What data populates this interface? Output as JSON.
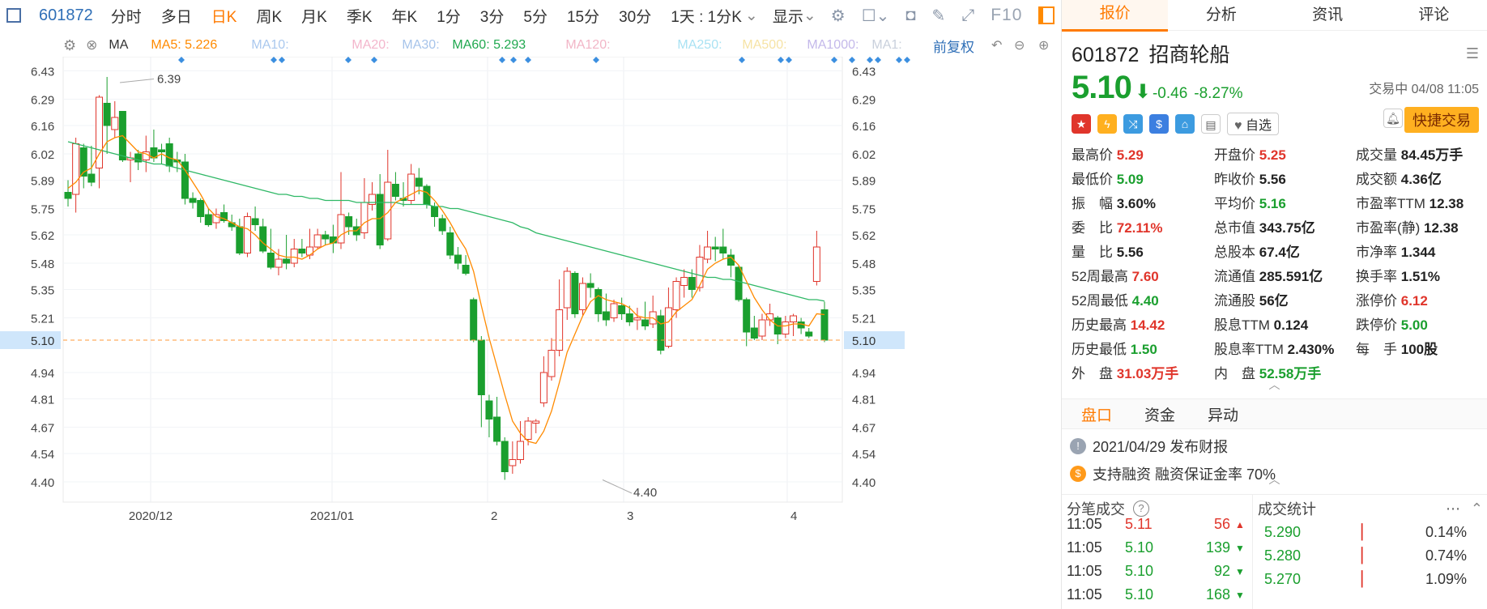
{
  "toolbar": {
    "code": "601872",
    "tabs": [
      "分时",
      "多日",
      "日K",
      "周K",
      "月K",
      "季K",
      "年K",
      "1分",
      "3分",
      "5分",
      "15分",
      "30分"
    ],
    "active_tab": "日K",
    "more": "1天 : 1分K",
    "display": "显示",
    "f10": "F10"
  },
  "ma": {
    "label": "MA",
    "items": [
      {
        "name": "MA5: 5.226",
        "color": "#ff8a00"
      },
      {
        "name": "MA10:",
        "color": "#aac8ee"
      },
      {
        "name": "MA20:",
        "color": "#f3b6cc"
      },
      {
        "name": "MA30:",
        "color": "#a7c4ea"
      },
      {
        "name": "MA60: 5.293",
        "color": "#20a84f"
      },
      {
        "name": "MA120:",
        "color": "#f2b6c7"
      },
      {
        "name": "MA250:",
        "color": "#a9e2f3"
      },
      {
        "name": "MA500:",
        "color": "#f6e3a5"
      },
      {
        "name": "MA1000:",
        "color": "#c4b9ea"
      },
      {
        "name": "MA1:",
        "color": "#c9d0dc"
      }
    ],
    "adjust": "前复权"
  },
  "chart_data": {
    "type": "candlestick",
    "ylim": [
      4.3,
      6.5
    ],
    "yticks": [
      "6.43",
      "6.29",
      "6.16",
      "6.02",
      "5.89",
      "5.75",
      "5.62",
      "5.48",
      "5.35",
      "5.21",
      "5.10",
      "4.94",
      "4.81",
      "4.67",
      "4.54",
      "4.40"
    ],
    "current_price": "5.10",
    "xlabels": [
      "2020/12",
      "2021/01",
      "2",
      "3",
      "4"
    ],
    "high_label": "6.39",
    "low_label": "4.40",
    "candles": [
      [
        5.83,
        5.8,
        5.89,
        5.76
      ],
      [
        5.82,
        6.07,
        6.1,
        5.73
      ],
      [
        6.05,
        5.91,
        6.07,
        5.85
      ],
      [
        5.92,
        5.88,
        6.06,
        5.86
      ],
      [
        5.95,
        6.3,
        6.31,
        5.85
      ],
      [
        6.27,
        6.16,
        6.4,
        6.02
      ],
      [
        6.14,
        6.2,
        6.28,
        6.1
      ],
      [
        6.23,
        5.99,
        6.23,
        5.98
      ],
      [
        5.99,
        6.0,
        6.03,
        5.88
      ],
      [
        6.02,
        5.98,
        6.04,
        5.94
      ],
      [
        5.99,
        6.03,
        6.11,
        5.93
      ],
      [
        6.05,
        6.0,
        6.14,
        5.98
      ],
      [
        6.04,
        6.03,
        6.07,
        5.97
      ],
      [
        6.07,
        5.96,
        6.1,
        5.93
      ],
      [
        5.99,
        5.98,
        6.03,
        5.93
      ],
      [
        5.98,
        5.8,
        6.02,
        5.77
      ],
      [
        5.8,
        5.78,
        5.83,
        5.75
      ],
      [
        5.79,
        5.71,
        5.8,
        5.68
      ],
      [
        5.72,
        5.67,
        5.75,
        5.66
      ],
      [
        5.68,
        5.72,
        5.75,
        5.65
      ],
      [
        5.73,
        5.69,
        5.77,
        5.68
      ],
      [
        5.68,
        5.66,
        5.72,
        5.64
      ],
      [
        5.66,
        5.53,
        5.7,
        5.52
      ],
      [
        5.53,
        5.71,
        5.73,
        5.51
      ],
      [
        5.7,
        5.67,
        5.76,
        5.64
      ],
      [
        5.66,
        5.54,
        5.7,
        5.53
      ],
      [
        5.53,
        5.46,
        5.65,
        5.45
      ],
      [
        5.46,
        5.5,
        5.55,
        5.42
      ],
      [
        5.5,
        5.48,
        5.62,
        5.45
      ],
      [
        5.48,
        5.55,
        5.6,
        5.46
      ],
      [
        5.55,
        5.53,
        5.6,
        5.51
      ],
      [
        5.52,
        5.56,
        5.65,
        5.5
      ],
      [
        5.56,
        5.62,
        5.65,
        5.55
      ],
      [
        5.62,
        5.6,
        5.64,
        5.57
      ],
      [
        5.61,
        5.58,
        5.67,
        5.53
      ],
      [
        5.58,
        5.72,
        5.93,
        5.55
      ],
      [
        5.71,
        5.66,
        5.73,
        5.62
      ],
      [
        5.66,
        5.62,
        5.7,
        5.59
      ],
      [
        5.63,
        5.78,
        5.9,
        5.6
      ],
      [
        5.77,
        5.82,
        5.88,
        5.74
      ],
      [
        5.82,
        5.57,
        5.92,
        5.55
      ],
      [
        5.6,
        5.88,
        6.04,
        5.59
      ],
      [
        5.87,
        5.81,
        5.93,
        5.79
      ],
      [
        5.8,
        5.79,
        5.88,
        5.76
      ],
      [
        5.79,
        5.92,
        5.97,
        5.77
      ],
      [
        5.9,
        5.86,
        5.95,
        5.82
      ],
      [
        5.86,
        5.77,
        5.87,
        5.75
      ],
      [
        5.76,
        5.71,
        5.78,
        5.66
      ],
      [
        5.7,
        5.64,
        5.72,
        5.62
      ],
      [
        5.63,
        5.52,
        5.66,
        5.5
      ],
      [
        5.52,
        5.48,
        5.56,
        5.45
      ],
      [
        5.47,
        5.43,
        5.52,
        5.42
      ],
      [
        5.3,
        5.1,
        5.31,
        5.09
      ],
      [
        5.1,
        4.83,
        5.12,
        4.67
      ],
      [
        4.8,
        4.71,
        4.83,
        4.62
      ],
      [
        4.72,
        4.6,
        4.82,
        4.58
      ],
      [
        4.6,
        4.45,
        4.62,
        4.41
      ],
      [
        4.48,
        4.51,
        4.6,
        4.44
      ],
      [
        4.51,
        4.6,
        4.7,
        4.49
      ],
      [
        4.61,
        4.7,
        4.72,
        4.58
      ],
      [
        4.69,
        4.7,
        4.71,
        4.64
      ],
      [
        4.79,
        4.94,
        5.02,
        4.77
      ],
      [
        4.92,
        5.05,
        5.11,
        4.9
      ],
      [
        5.05,
        5.25,
        5.4,
        5.02
      ],
      [
        5.26,
        5.44,
        5.46,
        5.2
      ],
      [
        5.43,
        5.23,
        5.44,
        5.21
      ],
      [
        5.25,
        5.38,
        5.41,
        5.22
      ],
      [
        5.38,
        5.36,
        5.43,
        5.31
      ],
      [
        5.35,
        5.23,
        5.36,
        5.19
      ],
      [
        5.24,
        5.2,
        5.33,
        5.17
      ],
      [
        5.21,
        5.28,
        5.3,
        5.19
      ],
      [
        5.27,
        5.23,
        5.31,
        5.2
      ],
      [
        5.23,
        5.19,
        5.27,
        5.17
      ],
      [
        5.2,
        5.21,
        5.26,
        5.15
      ],
      [
        5.2,
        5.17,
        5.29,
        5.15
      ],
      [
        5.18,
        5.24,
        5.32,
        5.16
      ],
      [
        5.22,
        5.05,
        5.25,
        5.03
      ],
      [
        5.07,
        5.26,
        5.36,
        5.06
      ],
      [
        5.25,
        5.39,
        5.41,
        5.21
      ],
      [
        5.37,
        5.41,
        5.45,
        5.31
      ],
      [
        5.41,
        5.35,
        5.45,
        5.31
      ],
      [
        5.36,
        5.51,
        5.57,
        5.34
      ],
      [
        5.5,
        5.56,
        5.64,
        5.48
      ],
      [
        5.56,
        5.55,
        5.61,
        5.49
      ],
      [
        5.56,
        5.53,
        5.65,
        5.5
      ],
      [
        5.52,
        5.47,
        5.55,
        5.41
      ],
      [
        5.46,
        5.3,
        5.47,
        5.29
      ],
      [
        5.3,
        5.14,
        5.31,
        5.07
      ],
      [
        5.16,
        5.11,
        5.22,
        5.1
      ],
      [
        5.12,
        5.2,
        5.23,
        5.1
      ],
      [
        5.2,
        5.23,
        5.28,
        5.17
      ],
      [
        5.21,
        5.13,
        5.22,
        5.08
      ],
      [
        5.13,
        5.19,
        5.22,
        5.11
      ],
      [
        5.19,
        5.22,
        5.23,
        5.12
      ],
      [
        5.19,
        5.16,
        5.21,
        5.13
      ],
      [
        5.14,
        5.12,
        5.16,
        5.11
      ],
      [
        5.39,
        5.56,
        5.64,
        5.37
      ],
      [
        5.25,
        5.1,
        5.29,
        5.09
      ]
    ],
    "ma5": [
      5.85,
      5.88,
      5.93,
      5.95,
      6.02,
      6.08,
      6.1,
      6.11,
      6.07,
      6.03,
      6.02,
      6.0,
      6.02,
      6.0,
      5.99,
      5.94,
      5.88,
      5.82,
      5.75,
      5.71,
      5.7,
      5.68,
      5.66,
      5.65,
      5.62,
      5.58,
      5.55,
      5.52,
      5.51,
      5.51,
      5.5,
      5.52,
      5.55,
      5.57,
      5.58,
      5.62,
      5.64,
      5.64,
      5.68,
      5.7,
      5.7,
      5.73,
      5.78,
      5.8,
      5.82,
      5.84,
      5.83,
      5.79,
      5.74,
      5.68,
      5.61,
      5.55,
      5.44,
      5.27,
      5.11,
      4.97,
      4.83,
      4.7,
      4.64,
      4.6,
      4.59,
      4.65,
      4.75,
      4.89,
      5.04,
      5.13,
      5.22,
      5.29,
      5.32,
      5.3,
      5.29,
      5.28,
      5.26,
      5.22,
      5.21,
      5.21,
      5.18,
      5.19,
      5.24,
      5.27,
      5.3,
      5.37,
      5.45,
      5.48,
      5.5,
      5.51,
      5.47,
      5.39,
      5.31,
      5.25,
      5.2,
      5.17,
      5.17,
      5.18,
      5.18,
      5.17,
      5.23,
      5.226
    ],
    "ma60": [
      6.08,
      6.07,
      6.06,
      6.05,
      6.04,
      6.03,
      6.02,
      6.01,
      6.0,
      5.99,
      5.98,
      5.97,
      5.97,
      5.96,
      5.95,
      5.94,
      5.93,
      5.92,
      5.91,
      5.9,
      5.89,
      5.88,
      5.87,
      5.86,
      5.85,
      5.84,
      5.83,
      5.82,
      5.82,
      5.81,
      5.81,
      5.8,
      5.8,
      5.79,
      5.79,
      5.79,
      5.79,
      5.78,
      5.78,
      5.78,
      5.78,
      5.78,
      5.78,
      5.77,
      5.77,
      5.77,
      5.77,
      5.76,
      5.76,
      5.75,
      5.75,
      5.74,
      5.73,
      5.72,
      5.71,
      5.7,
      5.69,
      5.68,
      5.66,
      5.65,
      5.63,
      5.62,
      5.61,
      5.6,
      5.59,
      5.58,
      5.57,
      5.56,
      5.55,
      5.54,
      5.53,
      5.52,
      5.51,
      5.5,
      5.49,
      5.48,
      5.47,
      5.46,
      5.45,
      5.44,
      5.43,
      5.42,
      5.41,
      5.41,
      5.4,
      5.4,
      5.39,
      5.38,
      5.37,
      5.36,
      5.35,
      5.34,
      5.33,
      5.32,
      5.31,
      5.3,
      5.3,
      5.293
    ]
  },
  "quote": {
    "code": "601872",
    "name": "招商轮船",
    "price": "5.10",
    "arrow": "⬇",
    "change": "-0.46",
    "pct": "-8.27%",
    "status": "交易中 04/08 11:05",
    "fav": "自选",
    "quick": "快捷交易",
    "fields": [
      {
        "k": "最高价",
        "v": "5.29",
        "c": "r"
      },
      {
        "k": "开盘价",
        "v": "5.25",
        "c": "r"
      },
      {
        "k": "成交量",
        "v": "84.45万手",
        "c": "k"
      },
      {
        "k": "最低价",
        "v": "5.09",
        "c": "g"
      },
      {
        "k": "昨收价",
        "v": "5.56",
        "c": "k"
      },
      {
        "k": "成交额",
        "v": "4.36亿",
        "c": "k"
      },
      {
        "k": "振　幅",
        "v": "3.60%",
        "c": "k"
      },
      {
        "k": "平均价",
        "v": "5.16",
        "c": "g"
      },
      {
        "k": "市盈率TTM",
        "v": "12.38",
        "c": "k"
      },
      {
        "k": "委　比",
        "v": "72.11%",
        "c": "r"
      },
      {
        "k": "总市值",
        "v": "343.75亿",
        "c": "k"
      },
      {
        "k": "市盈率(静)",
        "v": "12.38",
        "c": "k"
      },
      {
        "k": "量　比",
        "v": "5.56",
        "c": "k"
      },
      {
        "k": "总股本",
        "v": "67.4亿",
        "c": "k"
      },
      {
        "k": "市净率",
        "v": "1.344",
        "c": "k"
      },
      {
        "k": "52周最高",
        "v": "7.60",
        "c": "r"
      },
      {
        "k": "流通值",
        "v": "285.591亿",
        "c": "k"
      },
      {
        "k": "换手率",
        "v": "1.51%",
        "c": "k"
      },
      {
        "k": "52周最低",
        "v": "4.40",
        "c": "g"
      },
      {
        "k": "流通股",
        "v": "56亿",
        "c": "k"
      },
      {
        "k": "涨停价",
        "v": "6.12",
        "c": "r"
      },
      {
        "k": "历史最高",
        "v": "14.42",
        "c": "r"
      },
      {
        "k": "股息TTM",
        "v": "0.124",
        "c": "k"
      },
      {
        "k": "跌停价",
        "v": "5.00",
        "c": "g"
      },
      {
        "k": "历史最低",
        "v": "1.50",
        "c": "g"
      },
      {
        "k": "股息率TTM",
        "v": "2.430%",
        "c": "k"
      },
      {
        "k": "每　手",
        "v": "100股",
        "c": "k"
      },
      {
        "k": "外　盘",
        "v": "31.03万手",
        "c": "r"
      },
      {
        "k": "内　盘",
        "v": "52.58万手",
        "c": "g"
      },
      {
        "k": "",
        "v": "",
        "c": "k"
      }
    ]
  },
  "right_tabs": [
    "报价",
    "分析",
    "资讯",
    "评论"
  ],
  "sub_tabs": [
    "盘口",
    "资金",
    "异动"
  ],
  "notes": [
    {
      "icon": "!",
      "color": "#9aa4b2",
      "text": "2021/04/29  发布财报"
    },
    {
      "icon": "$",
      "color": "#ff9a1a",
      "text": "支持融资  融资保证金率 70%"
    }
  ],
  "ticks": {
    "title": "分笔成交",
    "rows": [
      {
        "t": "11:05",
        "p": "5.11",
        "v": "56",
        "c": "r"
      },
      {
        "t": "11:05",
        "p": "5.10",
        "v": "139",
        "c": "g"
      },
      {
        "t": "11:05",
        "p": "5.10",
        "v": "92",
        "c": "g"
      },
      {
        "t": "11:05",
        "p": "5.10",
        "v": "168",
        "c": "g"
      }
    ]
  },
  "stats": {
    "title": "成交统计",
    "rows": [
      {
        "p": "5.290",
        "pct": "0.14%"
      },
      {
        "p": "5.280",
        "pct": "0.74%"
      },
      {
        "p": "5.270",
        "pct": "1.09%"
      }
    ]
  }
}
